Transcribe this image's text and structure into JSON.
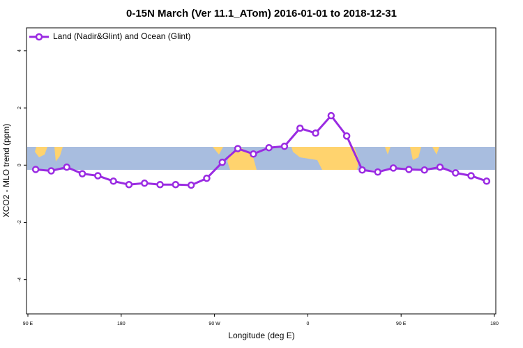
{
  "chart_data": {
    "type": "line",
    "title": "0-15N March (Ver 11.1_ATom)   2016-01-01 to 2018-12-31",
    "x_label": "Longitude (deg E)",
    "y_label": "XCO2 - MLO trend (ppm)",
    "x": [
      97.5,
      112.5,
      127.5,
      142.5,
      157.5,
      172.5,
      187.5,
      202.5,
      217.5,
      232.5,
      247.5,
      262.5,
      277.5,
      292.5,
      307.5,
      322.5,
      337.5,
      352.5,
      367.5,
      382.5,
      397.5,
      412.5,
      427.5,
      442.5,
      457.5,
      472.5,
      487.5,
      502.5,
      517.5,
      532.5
    ],
    "series": [
      {
        "name": "Land (Nadir&Glint) and Ocean (Glint)",
        "color": "#9a2be2",
        "values": [
          -0.15,
          -0.2,
          -0.07,
          -0.3,
          -0.37,
          -0.56,
          -0.68,
          -0.63,
          -0.68,
          -0.68,
          -0.7,
          -0.46,
          0.1,
          0.58,
          0.39,
          0.61,
          0.66,
          1.29,
          1.12,
          1.73,
          1.02,
          -0.17,
          -0.24,
          -0.1,
          -0.15,
          -0.17,
          -0.07,
          -0.27,
          -0.37,
          -0.56
        ]
      }
    ],
    "xlim": [
      90,
      540
    ],
    "xticks": [
      {
        "value": 90,
        "label": "90 E"
      },
      180,
      {
        "value": 270,
        "label": "90 W"
      },
      {
        "value": 360,
        "label": "0"
      },
      {
        "value": 450,
        "label": "90 E"
      },
      {
        "value": 540,
        "label": "180"
      }
    ],
    "ylim": [
      -5.2,
      4.8
    ],
    "yticks": [
      -4,
      -2,
      0,
      2,
      4
    ],
    "legend": "top-left"
  }
}
